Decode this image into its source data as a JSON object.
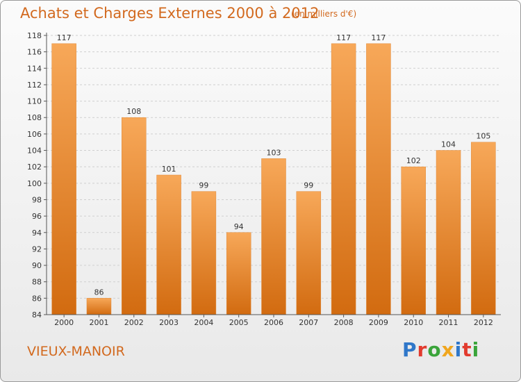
{
  "title": "Achats et Charges Externes 2000 à 2012",
  "subtitle": "(en milliers d'€)",
  "commune": "VIEUX-MANOIR",
  "brand": {
    "letters": [
      "P",
      "r",
      "o",
      "x",
      "i",
      "t",
      "i"
    ],
    "colors": [
      "#2f77c9",
      "#e23b2e",
      "#3aa43a",
      "#f0a61e",
      "#2f77c9",
      "#e23b2e",
      "#3aa43a"
    ]
  },
  "chart_data": {
    "type": "bar",
    "categories": [
      "2000",
      "2001",
      "2002",
      "2003",
      "2004",
      "2005",
      "2006",
      "2007",
      "2008",
      "2009",
      "2010",
      "2011",
      "2012"
    ],
    "values": [
      117,
      86,
      108,
      101,
      99,
      94,
      103,
      99,
      117,
      117,
      102,
      104,
      105
    ],
    "data_labels": [
      "117",
      "86",
      "108",
      "101",
      "99",
      "94",
      "103",
      "99",
      "117",
      "117",
      "102",
      "104",
      "105"
    ],
    "ylim": [
      84,
      118
    ],
    "yticks": [
      "84",
      "86",
      "88",
      "90",
      "92",
      "94",
      "96",
      "98",
      "100",
      "102",
      "104",
      "106",
      "108",
      "110",
      "112",
      "114",
      "116",
      "118"
    ],
    "grid": true,
    "bar_color": "#f0912f",
    "bar_color_dark": "#d26b10"
  }
}
